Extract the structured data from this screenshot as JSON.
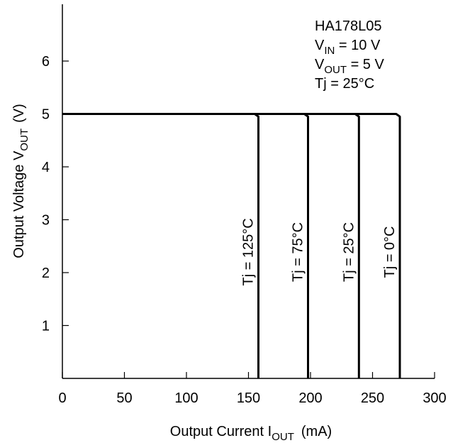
{
  "chart_data": {
    "type": "line",
    "title": "",
    "xlabel": {
      "prefix": "Output Current ",
      "symbol": "I",
      "sub": "OUT",
      "suffix": "(mA)"
    },
    "ylabel": {
      "prefix": "Output Voltage ",
      "symbol": "V",
      "sub": "OUT",
      "suffix": "(V)"
    },
    "xlim": [
      0,
      300
    ],
    "ylim": [
      0,
      7
    ],
    "x_ticks": [
      0,
      50,
      100,
      150,
      200,
      250,
      300
    ],
    "y_ticks": [
      1,
      2,
      3,
      4,
      5,
      6
    ],
    "grid": false,
    "annotation": {
      "line1": "HA178L05",
      "line2": {
        "symbol": "V",
        "sub": "IN",
        "rest": " = 10 V"
      },
      "line3": {
        "symbol": "V",
        "sub": "OUT",
        "rest": " = 5 V"
      },
      "line4": "Tj = 25°C"
    },
    "series": [
      {
        "label": "Tj = 125°C",
        "points": [
          [
            0,
            5.0
          ],
          [
            155,
            5.0
          ],
          [
            158,
            4.95
          ],
          [
            158,
            0
          ]
        ]
      },
      {
        "label": "Tj = 75°C",
        "points": [
          [
            0,
            5.0
          ],
          [
            195,
            5.0
          ],
          [
            198,
            4.95
          ],
          [
            198,
            0
          ]
        ]
      },
      {
        "label": "Tj = 25°C",
        "points": [
          [
            0,
            5.0
          ],
          [
            236,
            5.0
          ],
          [
            239,
            4.95
          ],
          [
            239,
            0
          ]
        ]
      },
      {
        "label": "Tj = 0°C",
        "points": [
          [
            0,
            5.0
          ],
          [
            269,
            5.0
          ],
          [
            272,
            4.95
          ],
          [
            272,
            0
          ]
        ]
      }
    ]
  }
}
